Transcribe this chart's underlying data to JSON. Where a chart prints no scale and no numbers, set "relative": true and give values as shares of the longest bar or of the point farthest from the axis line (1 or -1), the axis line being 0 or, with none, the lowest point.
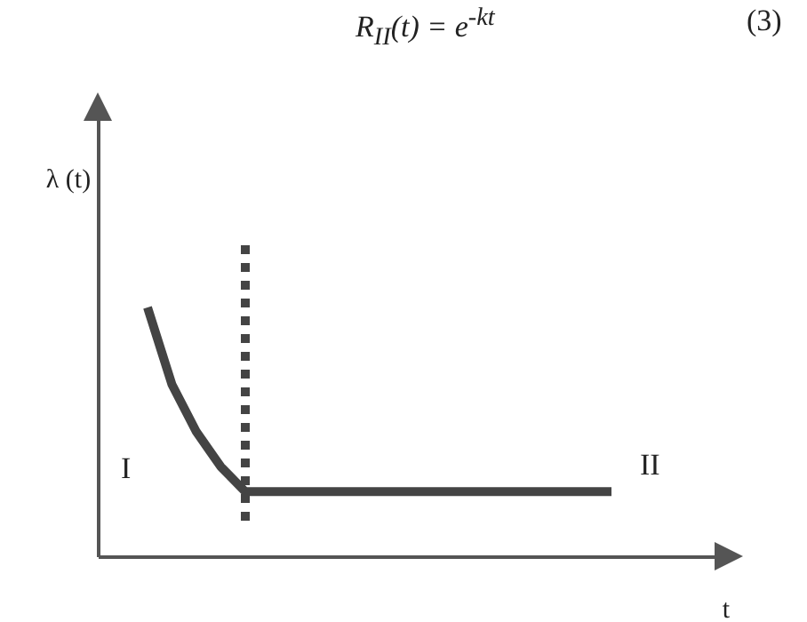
{
  "chart_data": {
    "type": "line",
    "relative": true,
    "xlabel": "t",
    "ylabel": "λ (t)",
    "categories": [
      null,
      null,
      null,
      null,
      null,
      null,
      null,
      null,
      null,
      null,
      null,
      null,
      null,
      null,
      null,
      null,
      null,
      null,
      null,
      null
    ],
    "series": [
      {
        "color": "#444444",
        "values": [
          1,
          0.69,
          0.5,
          0.36,
          0.26,
          0.26,
          0.26,
          0.26,
          0.26,
          0.26,
          0.26,
          0.26,
          0.26,
          0.26,
          0.26,
          0.26,
          0.26,
          0.26,
          0.26,
          0.26
        ]
      }
    ],
    "annotations": [
      "R$_{II}$(t) = e$^{-kt}$",
      "(3)",
      "I",
      "II"
    ],
    "grid": false,
    "marker": "none",
    "line_style": "solid"
  }
}
